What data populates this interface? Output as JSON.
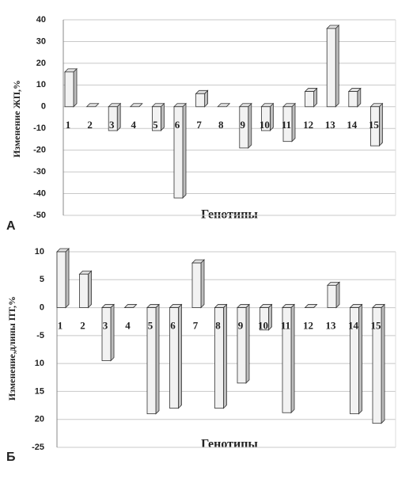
{
  "chart_data": [
    {
      "type": "bar",
      "panel_label": "А",
      "y_label": "Изменение ЖП,%",
      "x_label": "Генотипы",
      "categories": [
        "1",
        "2",
        "3",
        "4",
        "5",
        "6",
        "7",
        "8",
        "9",
        "10",
        "11",
        "12",
        "13",
        "14",
        "15"
      ],
      "values": [
        16,
        0,
        -11,
        0,
        -11,
        -42,
        6,
        0,
        -19,
        -11,
        -16,
        7,
        36,
        7,
        -18
      ],
      "color": "#f2f2f2",
      "ylim": [
        -50,
        40
      ],
      "yticks": [
        -50,
        -40,
        -30,
        -20,
        -10,
        0,
        10,
        20,
        30,
        40
      ],
      "grid": true
    },
    {
      "type": "bar",
      "panel_label": "Б",
      "y_label": "Изменение,длины ПТ,%",
      "x_label": "Генотипы",
      "categories": [
        "1",
        "2",
        "3",
        "4",
        "5",
        "6",
        "7",
        "8",
        "9",
        "10",
        "11",
        "12",
        "13",
        "14",
        "15"
      ],
      "values": [
        10,
        6,
        -9.5,
        0,
        -19,
        -18,
        8,
        -18,
        -13.5,
        -4,
        -18.8,
        0,
        4,
        -19,
        -20.7
      ],
      "color": "#f2f2f2",
      "ylim": [
        -25,
        10
      ],
      "yticks": [
        -25,
        {
          "value": -20,
          "label": "20"
        },
        {
          "value": -15,
          "label": "15"
        },
        {
          "value": -10,
          "label": "10"
        },
        -5,
        0,
        5,
        10
      ],
      "grid": true
    }
  ]
}
